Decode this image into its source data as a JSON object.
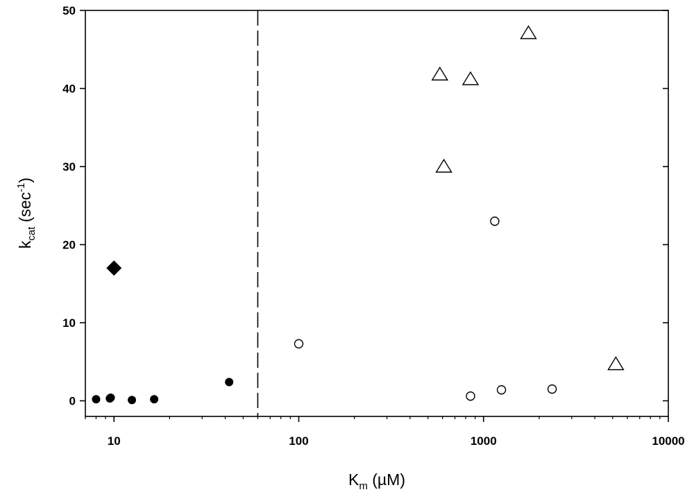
{
  "chart_data": {
    "type": "scatter",
    "x_scale": "log",
    "xlim": [
      7,
      10000
    ],
    "ylim": [
      -2,
      50
    ],
    "xlabel": {
      "main": "K",
      "sub": "m",
      "unit": " (µM)"
    },
    "ylabel": {
      "main": "k",
      "sub": "cat",
      "unit_before": " (sec",
      "sup": "-1",
      "unit_after": ")"
    },
    "x_ticks": [
      10,
      100,
      1000,
      10000
    ],
    "x_tick_labels": [
      "10",
      "100",
      "1000",
      "10000"
    ],
    "y_ticks": [
      0,
      10,
      20,
      30,
      40,
      50
    ],
    "y_tick_labels": [
      "0",
      "10",
      "20",
      "30",
      "40",
      "50"
    ],
    "reference_line": {
      "x": 60,
      "style": "dashed"
    },
    "grid": false,
    "series": [
      {
        "marker": "filled-circle",
        "color": "#000000",
        "points": [
          {
            "x": 8,
            "y": 0.2
          },
          {
            "x": 9.5,
            "y": 0.3
          },
          {
            "x": 9.6,
            "y": 0.4
          },
          {
            "x": 12.5,
            "y": 0.1
          },
          {
            "x": 16.5,
            "y": 0.2
          },
          {
            "x": 42,
            "y": 2.4
          }
        ]
      },
      {
        "marker": "filled-diamond",
        "color": "#000000",
        "points": [
          {
            "x": 10,
            "y": 17
          }
        ]
      },
      {
        "marker": "open-circle",
        "color": "#000000",
        "points": [
          {
            "x": 100,
            "y": 7.3
          },
          {
            "x": 850,
            "y": 0.6
          },
          {
            "x": 1150,
            "y": 23
          },
          {
            "x": 1250,
            "y": 1.4
          },
          {
            "x": 2350,
            "y": 1.5
          }
        ]
      },
      {
        "marker": "open-triangle",
        "color": "#000000",
        "points": [
          {
            "x": 580,
            "y": 41.8
          },
          {
            "x": 610,
            "y": 30
          },
          {
            "x": 850,
            "y": 41.2
          },
          {
            "x": 1750,
            "y": 47.1
          },
          {
            "x": 5200,
            "y": 4.7
          }
        ]
      }
    ]
  }
}
